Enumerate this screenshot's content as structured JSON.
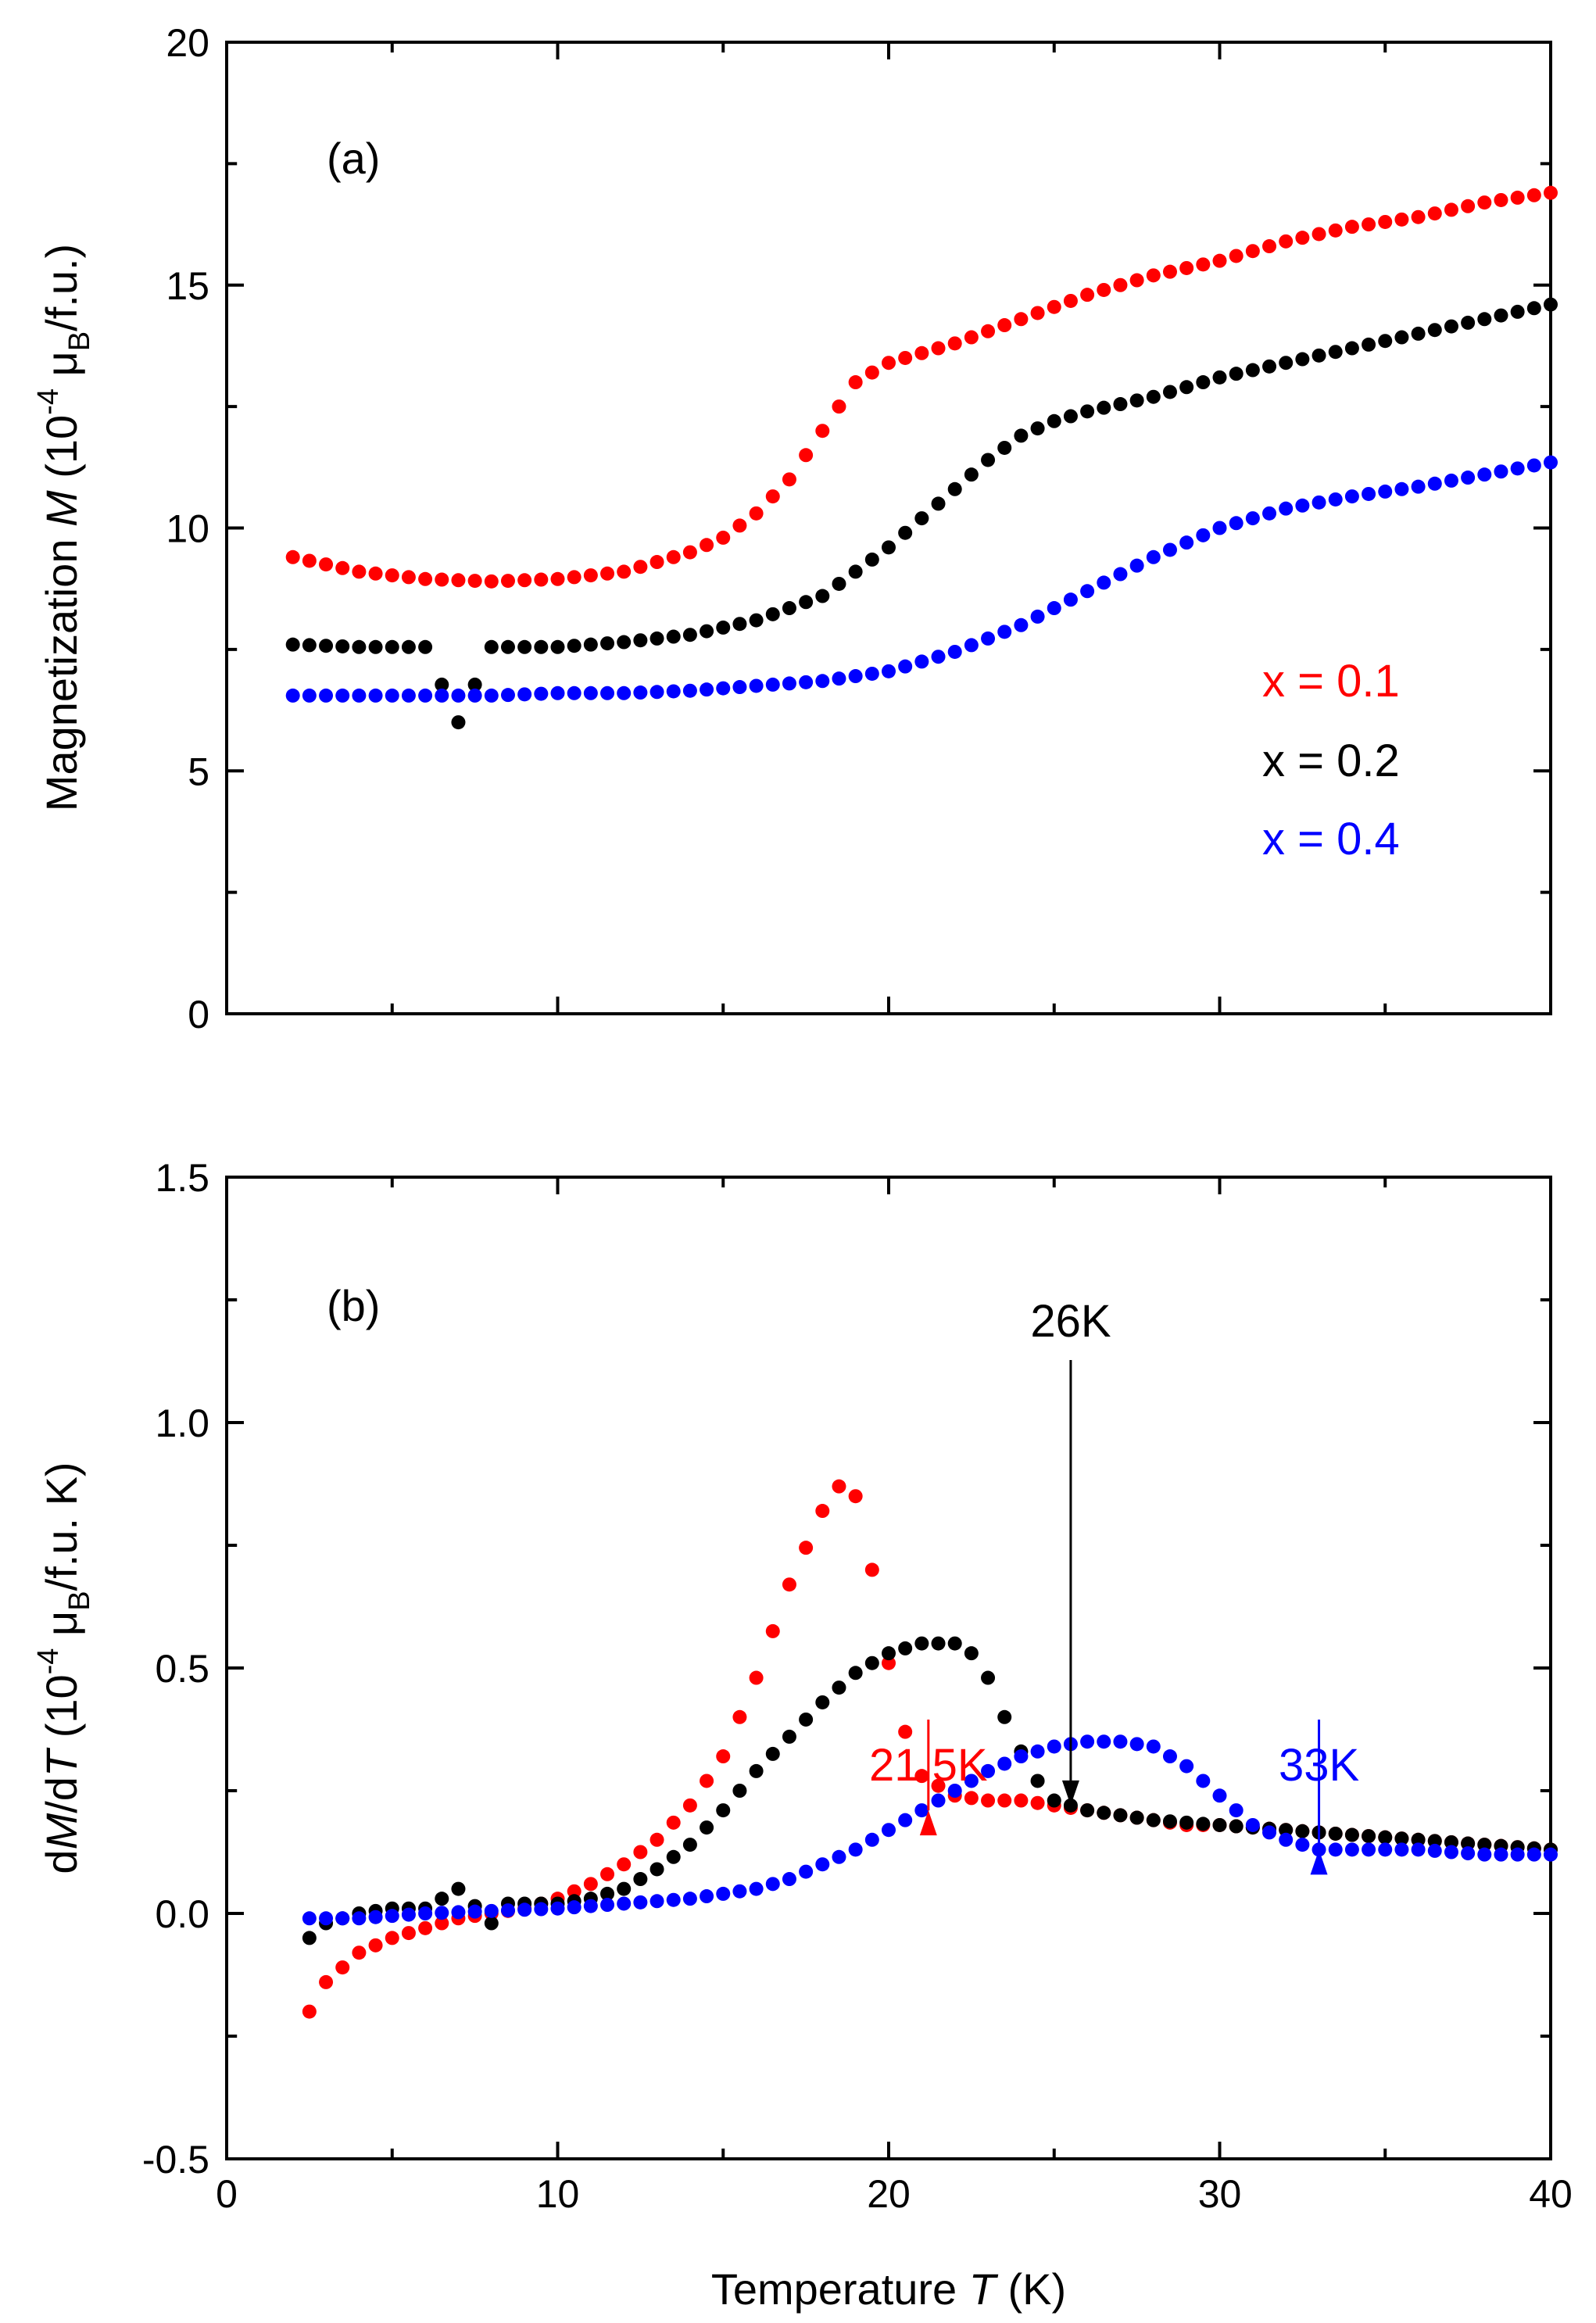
{
  "chart_data": [
    {
      "panel": "a",
      "type": "scatter",
      "panel_label": "(a)",
      "xlabel": "",
      "ylabel": {
        "pre": "Magnetization ",
        "ital": "M",
        "unit1": " (10",
        "exp": "-4",
        "unit2": " μ",
        "sub": "B",
        "unit3": "/f.u.)"
      },
      "xlim": [
        0,
        40
      ],
      "ylim": [
        0,
        20
      ],
      "yticks": [
        0,
        5,
        10,
        15,
        20
      ],
      "ytick_labels": [
        "0",
        "5",
        "10",
        "15",
        "20"
      ],
      "xticks": [
        0,
        10,
        20,
        30,
        40
      ],
      "legend": [
        {
          "label": "x = 0.1",
          "color": "#ff0000"
        },
        {
          "label": "x = 0.2",
          "color": "#000000"
        },
        {
          "label": "x = 0.4",
          "color": "#0000ff"
        }
      ],
      "series": [
        {
          "name": "x = 0.1",
          "color": "#ff0000",
          "x": [
            2,
            4,
            6,
            8,
            10,
            12,
            14,
            15,
            16,
            17,
            18,
            19,
            20,
            22,
            24,
            26,
            28,
            30,
            32,
            34,
            36,
            38,
            40
          ],
          "y": [
            9.4,
            9.1,
            8.95,
            8.9,
            8.95,
            9.1,
            9.5,
            9.8,
            10.3,
            11.0,
            12.0,
            13.0,
            13.4,
            13.8,
            14.3,
            14.8,
            15.2,
            15.5,
            15.9,
            16.2,
            16.4,
            16.7,
            16.9
          ]
        },
        {
          "name": "x = 0.2",
          "color": "#000000",
          "x": [
            2,
            4,
            6,
            7,
            8,
            10,
            12,
            14,
            16,
            18,
            19,
            20,
            21,
            22,
            23,
            24,
            25,
            26,
            28,
            30,
            32,
            34,
            36,
            38,
            40
          ],
          "y": [
            7.6,
            7.55,
            7.55,
            6.0,
            7.55,
            7.55,
            7.65,
            7.8,
            8.1,
            8.6,
            9.1,
            9.6,
            10.2,
            10.8,
            11.4,
            11.9,
            12.2,
            12.4,
            12.7,
            13.1,
            13.4,
            13.7,
            14.0,
            14.3,
            14.6
          ]
        },
        {
          "name": "x = 0.4",
          "color": "#0000ff",
          "x": [
            2,
            4,
            6,
            8,
            10,
            12,
            14,
            16,
            18,
            20,
            22,
            24,
            26,
            28,
            30,
            32,
            34,
            36,
            38,
            40
          ],
          "y": [
            6.55,
            6.55,
            6.55,
            6.55,
            6.6,
            6.6,
            6.65,
            6.75,
            6.85,
            7.05,
            7.45,
            8.0,
            8.7,
            9.4,
            10.0,
            10.4,
            10.65,
            10.85,
            11.1,
            11.35
          ]
        }
      ]
    },
    {
      "panel": "b",
      "type": "scatter",
      "panel_label": "(b)",
      "xlabel": {
        "pre": "Temperature ",
        "ital": "T",
        "post": " (K)"
      },
      "ylabel": {
        "pre": "d",
        "ital": "M",
        "mid": "/d",
        "ital2": "T",
        "unit1": " (10",
        "exp": "-4",
        "unit2": " μ",
        "sub": "B",
        "unit3": "/f.u. K)"
      },
      "xlim": [
        0,
        40
      ],
      "ylim": [
        -0.5,
        1.5
      ],
      "xticks": [
        0,
        10,
        20,
        30,
        40
      ],
      "xtick_labels": [
        "0",
        "10",
        "20",
        "30",
        "40"
      ],
      "yticks": [
        -0.5,
        0.0,
        0.5,
        1.0,
        1.5
      ],
      "ytick_labels": [
        "-0.5",
        "0.0",
        "0.5",
        "1.0",
        "1.5"
      ],
      "annotations": [
        {
          "text": "26K",
          "x": 25.5,
          "color": "#000000",
          "direction": "down",
          "tip": 0.22
        },
        {
          "text": "21.5K",
          "x": 21.2,
          "color": "#ff0000",
          "direction": "up",
          "tip": 0.21
        },
        {
          "text": "33K",
          "x": 33.0,
          "color": "#0000ff",
          "direction": "up",
          "tip": 0.13
        }
      ],
      "series": [
        {
          "name": "x = 0.1",
          "color": "#ff0000",
          "x": [
            2.5,
            3,
            4,
            5,
            6,
            7,
            8,
            9,
            10,
            11,
            12,
            13,
            14,
            15,
            16,
            17,
            18,
            18.5,
            19,
            19.5,
            20,
            20.5,
            21,
            22,
            23,
            24,
            25,
            26,
            27,
            28,
            29,
            30,
            32,
            34,
            36,
            38,
            40
          ],
          "y": [
            -0.2,
            -0.14,
            -0.08,
            -0.05,
            -0.03,
            -0.01,
            0.0,
            0.01,
            0.03,
            0.06,
            0.1,
            0.15,
            0.22,
            0.32,
            0.48,
            0.67,
            0.82,
            0.87,
            0.85,
            0.7,
            0.51,
            0.37,
            0.28,
            0.24,
            0.23,
            0.23,
            0.22,
            0.21,
            0.2,
            0.19,
            0.18,
            0.18,
            0.17,
            0.16,
            0.15,
            0.14,
            0.13
          ]
        },
        {
          "name": "x = 0.2",
          "color": "#000000",
          "x": [
            2.5,
            3,
            4,
            5,
            6,
            7,
            8,
            8.5,
            9,
            10,
            11,
            12,
            13,
            14,
            15,
            16,
            17,
            18,
            19,
            20,
            21,
            22,
            22.5,
            23,
            23.5,
            24,
            24.5,
            25,
            26,
            27,
            28,
            30,
            32,
            34,
            36,
            38,
            40
          ],
          "y": [
            -0.05,
            -0.02,
            0.0,
            0.01,
            0.01,
            0.05,
            -0.02,
            0.02,
            0.02,
            0.02,
            0.03,
            0.05,
            0.09,
            0.14,
            0.21,
            0.29,
            0.36,
            0.43,
            0.49,
            0.53,
            0.55,
            0.55,
            0.53,
            0.48,
            0.4,
            0.33,
            0.27,
            0.23,
            0.21,
            0.2,
            0.19,
            0.18,
            0.17,
            0.16,
            0.15,
            0.14,
            0.13
          ]
        },
        {
          "name": "x = 0.4",
          "color": "#0000ff",
          "x": [
            2.5,
            4,
            6,
            8,
            10,
            12,
            14,
            15,
            16,
            17,
            18,
            19,
            20,
            21,
            22,
            23,
            24,
            25,
            26,
            27,
            28,
            29,
            30,
            31,
            32,
            33,
            34,
            35,
            36,
            38,
            40
          ],
          "y": [
            -0.01,
            -0.01,
            0.0,
            0.005,
            0.01,
            0.02,
            0.03,
            0.04,
            0.05,
            0.07,
            0.1,
            0.13,
            0.17,
            0.21,
            0.25,
            0.29,
            0.32,
            0.34,
            0.35,
            0.35,
            0.34,
            0.3,
            0.24,
            0.18,
            0.15,
            0.13,
            0.13,
            0.13,
            0.13,
            0.12,
            0.12
          ]
        }
      ]
    }
  ]
}
